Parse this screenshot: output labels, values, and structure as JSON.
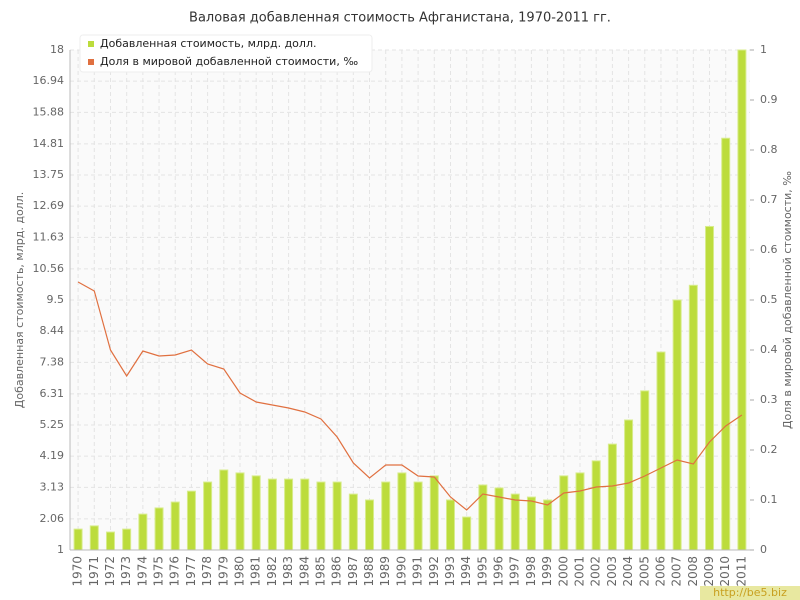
{
  "chart_data": {
    "type": "bar",
    "title": "Валовая добавленная стоимость Афганистана, 1970-2011 гг.",
    "y_label": "Добавленная стоимость, млрд. долл.",
    "y2_label": "Доля в мировой добавленной стоимости, ‰",
    "watermark": "http://be5.biz",
    "categories": [
      "1970",
      "1971",
      "1972",
      "1973",
      "1974",
      "1975",
      "1976",
      "1977",
      "1978",
      "1979",
      "1980",
      "1981",
      "1982",
      "1983",
      "1984",
      "1985",
      "1986",
      "1987",
      "1988",
      "1989",
      "1990",
      "1991",
      "1992",
      "1993",
      "1994",
      "1995",
      "1996",
      "1997",
      "1998",
      "1999",
      "2000",
      "2001",
      "2002",
      "2003",
      "2004",
      "2005",
      "2006",
      "2007",
      "2008",
      "2009",
      "2010",
      "2011"
    ],
    "series": [
      {
        "name": "Добавленная стоимость, млрд. долл.",
        "type": "bar",
        "color": "#bcdc3c",
        "values": [
          1.71,
          1.82,
          1.61,
          1.71,
          2.22,
          2.43,
          2.63,
          3.0,
          3.31,
          3.72,
          3.62,
          3.52,
          3.41,
          3.41,
          3.41,
          3.31,
          3.31,
          2.9,
          2.7,
          3.31,
          3.62,
          3.31,
          3.52,
          2.7,
          2.12,
          3.21,
          3.11,
          2.9,
          2.8,
          2.7,
          3.52,
          3.62,
          4.03,
          4.6,
          5.42,
          6.41,
          7.73,
          9.5,
          10.0,
          12.0,
          15.0,
          18.0
        ]
      },
      {
        "name": "Доля в мировой добавленной стоимости, ‰",
        "type": "line",
        "axis": "y2",
        "color": "#e07040",
        "values": [
          0.536,
          0.518,
          0.4,
          0.348,
          0.398,
          0.388,
          0.39,
          0.4,
          0.372,
          0.362,
          0.314,
          0.296,
          0.29,
          0.284,
          0.276,
          0.262,
          0.226,
          0.174,
          0.144,
          0.17,
          0.17,
          0.148,
          0.146,
          0.106,
          0.08,
          0.112,
          0.106,
          0.1,
          0.098,
          0.09,
          0.114,
          0.118,
          0.126,
          0.128,
          0.134,
          0.148,
          0.164,
          0.18,
          0.172,
          0.216,
          0.248,
          0.27
        ]
      }
    ],
    "ylim": [
      1,
      18
    ],
    "yticks": [
      1,
      2.06,
      3.13,
      4.19,
      5.25,
      6.31,
      7.38,
      8.44,
      9.5,
      10.56,
      11.63,
      12.69,
      13.75,
      14.81,
      15.88,
      16.94,
      18
    ],
    "y2lim": [
      0,
      1
    ],
    "y2ticks": [
      0,
      0.1,
      0.2,
      0.3,
      0.4,
      0.5,
      0.6,
      0.7,
      0.8,
      0.9,
      1
    ],
    "grid": true,
    "legend": "top-left"
  }
}
